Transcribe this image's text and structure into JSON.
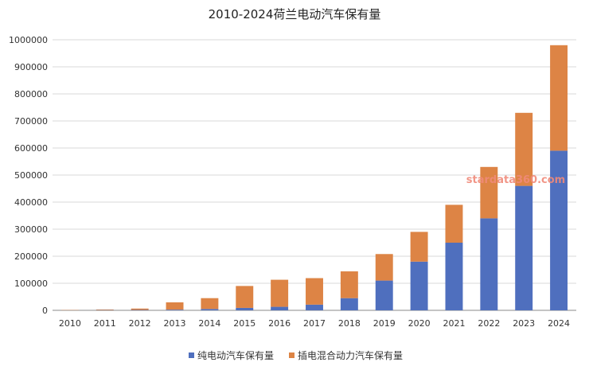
{
  "chart_data": {
    "type": "bar",
    "stacked": true,
    "title": "2010-2024荷兰电动汽车保有量",
    "watermark": "stardata360.com",
    "categories": [
      "2010",
      "2011",
      "2012",
      "2013",
      "2014",
      "2015",
      "2016",
      "2017",
      "2018",
      "2019",
      "2020",
      "2021",
      "2022",
      "2023",
      "2024"
    ],
    "series": [
      {
        "name": "纯电动汽车保有量",
        "color": "#4f6fbe",
        "values": [
          500,
          1000,
          1500,
          2500,
          5000,
          9000,
          13000,
          21000,
          45000,
          110000,
          180000,
          250000,
          340000,
          460000,
          590000
        ]
      },
      {
        "name": "插电混合动力汽车保有量",
        "color": "#dd8445",
        "values": [
          1000,
          2000,
          5000,
          27000,
          40000,
          81000,
          100000,
          98000,
          99000,
          98000,
          110000,
          140000,
          190000,
          270000,
          390000
        ]
      }
    ],
    "ylim": [
      0,
      1000000
    ],
    "yticks": [
      "0",
      "100000",
      "200000",
      "300000",
      "400000",
      "500000",
      "600000",
      "700000",
      "800000",
      "900000",
      "1000000"
    ],
    "grid": true,
    "legend_position": "bottom"
  }
}
